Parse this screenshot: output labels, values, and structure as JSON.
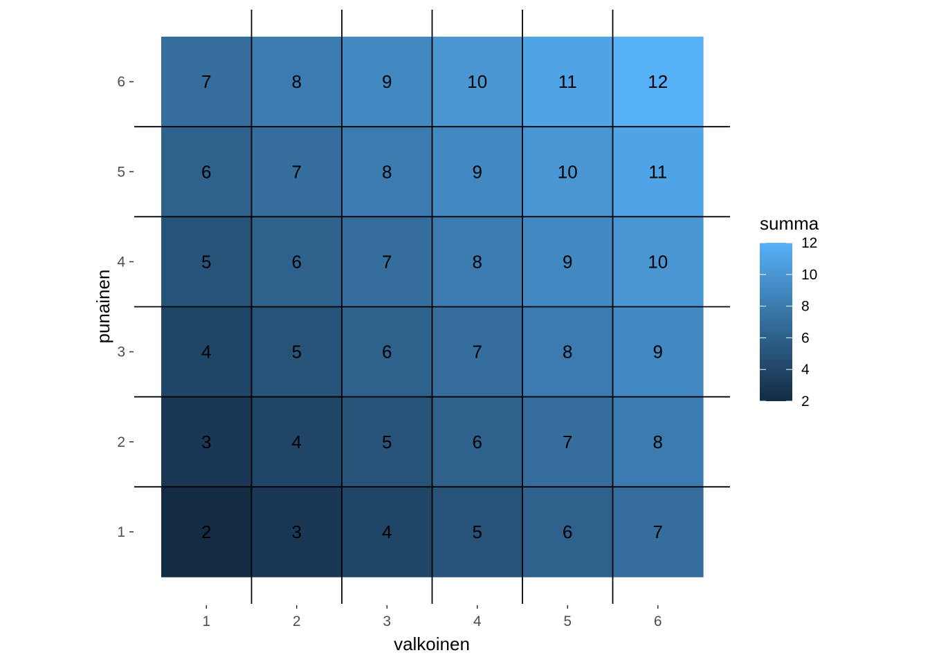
{
  "chart_data": {
    "type": "heatmap",
    "xlabel": "valkoinen",
    "ylabel": "punainen",
    "x": [
      1,
      2,
      3,
      4,
      5,
      6
    ],
    "y": [
      1,
      2,
      3,
      4,
      5,
      6
    ],
    "values": [
      [
        2,
        3,
        4,
        5,
        6,
        7
      ],
      [
        3,
        4,
        5,
        6,
        7,
        8
      ],
      [
        4,
        5,
        6,
        7,
        8,
        9
      ],
      [
        5,
        6,
        7,
        8,
        9,
        10
      ],
      [
        6,
        7,
        8,
        9,
        10,
        11
      ],
      [
        7,
        8,
        9,
        10,
        11,
        12
      ]
    ],
    "legend": {
      "title": "summa",
      "placement": "right",
      "range": [
        2,
        12
      ],
      "ticks": [
        2,
        4,
        6,
        8,
        10,
        12
      ]
    },
    "colors": {
      "low": "#132B43",
      "high": "#56B1F7"
    },
    "grid": false
  }
}
